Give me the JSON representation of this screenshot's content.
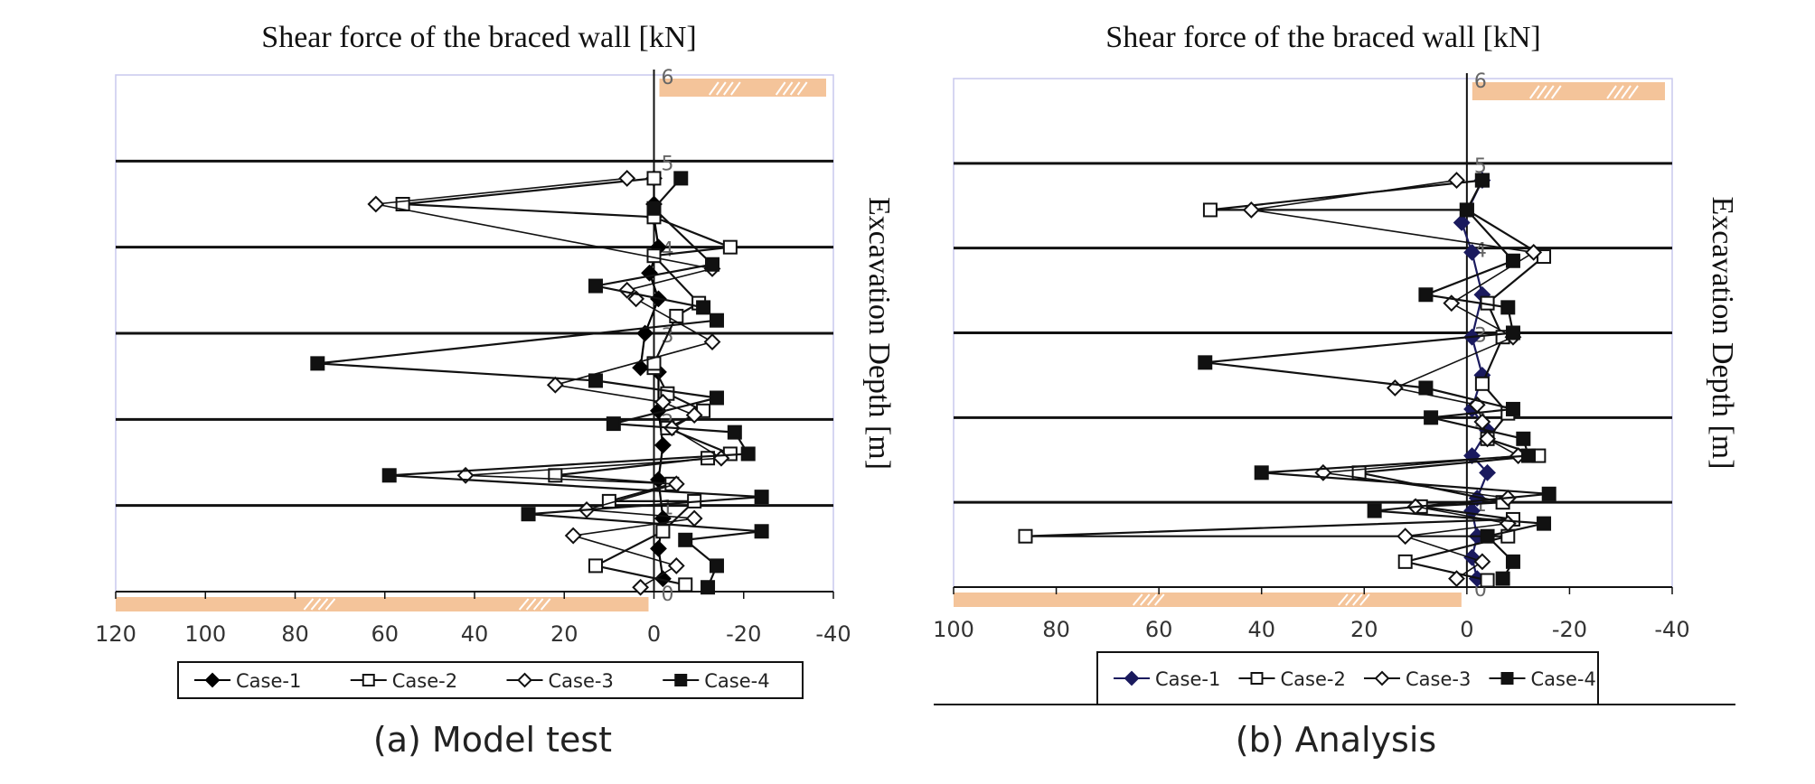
{
  "page": {
    "caption_a": "(a) Model test",
    "caption_b": "(b) Analysis"
  },
  "colors": {
    "soil_fill": "#f4c49a",
    "plot_border": "#c8c8ee",
    "analysis_case1": "#1a1a5e"
  },
  "chart_data": [
    {
      "type": "line",
      "orientation": "vertical-profile",
      "title": "Shear force of the braced wall [kN]",
      "xlabel": "",
      "ylabel": "Excavation Depth [m]",
      "xlim": [
        120,
        -40
      ],
      "ylim": [
        0,
        6
      ],
      "xticks": [
        120,
        100,
        80,
        60,
        40,
        20,
        0,
        -20,
        -40
      ],
      "yticks": [
        0,
        1,
        2,
        3,
        4,
        5,
        6
      ],
      "x_axis_reversed": true,
      "grid": "horizontal",
      "legend": "bottom",
      "series": [
        {
          "name": "Case-1",
          "marker": "filled-diamond",
          "points": [
            [
              -2,
              0.15
            ],
            [
              -1,
              0.5
            ],
            [
              -2,
              0.85
            ],
            [
              -1,
              1.3
            ],
            [
              -2,
              1.7
            ],
            [
              -1,
              2.1
            ],
            [
              -1,
              2.55
            ],
            [
              2,
              3.0
            ],
            [
              3,
              2.6
            ],
            [
              -1,
              3.4
            ],
            [
              1,
              3.7
            ],
            [
              -1,
              4.0
            ],
            [
              0,
              4.35
            ],
            [
              0,
              4.5
            ],
            [
              0,
              4.8
            ]
          ]
        },
        {
          "name": "Case-2",
          "marker": "open-square",
          "points": [
            [
              -7,
              0.08
            ],
            [
              13,
              0.3
            ],
            [
              -2,
              0.7
            ],
            [
              -9,
              1.05
            ],
            [
              10,
              1.05
            ],
            [
              -4,
              1.25
            ],
            [
              -12,
              1.55
            ],
            [
              22,
              1.35
            ],
            [
              -17,
              1.6
            ],
            [
              -3,
              1.9
            ],
            [
              -11,
              2.1
            ],
            [
              -3,
              2.3
            ],
            [
              0,
              2.6
            ],
            [
              0,
              2.65
            ],
            [
              -5,
              3.2
            ],
            [
              -10,
              3.35
            ],
            [
              0,
              3.9
            ],
            [
              -17,
              4.0
            ],
            [
              0,
              4.35
            ],
            [
              56,
              4.5
            ],
            [
              0,
              4.8
            ]
          ]
        },
        {
          "name": "Case-3",
          "marker": "open-diamond",
          "points": [
            [
              3,
              0.05
            ],
            [
              -5,
              0.3
            ],
            [
              18,
              0.65
            ],
            [
              -9,
              0.85
            ],
            [
              15,
              0.95
            ],
            [
              -5,
              1.25
            ],
            [
              42,
              1.35
            ],
            [
              -15,
              1.55
            ],
            [
              -4,
              1.9
            ],
            [
              -9,
              2.05
            ],
            [
              -2,
              2.2
            ],
            [
              22,
              2.4
            ],
            [
              -13,
              2.9
            ],
            [
              4,
              3.4
            ],
            [
              -13,
              3.75
            ],
            [
              6,
              3.5
            ],
            [
              62,
              4.5
            ],
            [
              6,
              4.8
            ]
          ]
        },
        {
          "name": "Case-4",
          "marker": "filled-square",
          "points": [
            [
              -12,
              0.05
            ],
            [
              -14,
              0.3
            ],
            [
              -7,
              0.6
            ],
            [
              -24,
              0.7
            ],
            [
              28,
              0.9
            ],
            [
              -24,
              1.1
            ],
            [
              59,
              1.35
            ],
            [
              -21,
              1.6
            ],
            [
              -18,
              1.85
            ],
            [
              9,
              1.95
            ],
            [
              -14,
              2.25
            ],
            [
              13,
              2.45
            ],
            [
              75,
              2.65
            ],
            [
              -14,
              3.15
            ],
            [
              -11,
              3.3
            ],
            [
              13,
              3.55
            ],
            [
              -13,
              3.8
            ],
            [
              0,
              4.45
            ],
            [
              -6,
              4.8
            ]
          ]
        }
      ]
    },
    {
      "type": "line",
      "orientation": "vertical-profile",
      "title": "Shear force of the braced wall [kN]",
      "xlabel": "",
      "ylabel": "Excavation Depth [m]",
      "xlim": [
        100,
        -40
      ],
      "ylim": [
        0,
        6
      ],
      "xticks": [
        100,
        80,
        60,
        40,
        20,
        0,
        -20,
        -40
      ],
      "yticks": [
        0,
        1,
        2,
        3,
        4,
        5,
        6
      ],
      "x_axis_reversed": true,
      "grid": "horizontal",
      "legend": "bottom",
      "series": [
        {
          "name": "Case-1",
          "marker": "filled-diamond",
          "points": [
            [
              -2,
              0.1
            ],
            [
              -1,
              0.35
            ],
            [
              -2,
              0.6
            ],
            [
              -1,
              0.9
            ],
            [
              -2,
              1.05
            ],
            [
              -4,
              1.35
            ],
            [
              -1,
              1.55
            ],
            [
              -4,
              1.85
            ],
            [
              -1,
              2.1
            ],
            [
              -3,
              2.5
            ],
            [
              -1,
              2.95
            ],
            [
              -3,
              3.45
            ],
            [
              -1,
              3.95
            ],
            [
              1,
              4.3
            ],
            [
              -3,
              4.8
            ]
          ]
        },
        {
          "name": "Case-2",
          "marker": "open-square",
          "points": [
            [
              -4,
              0.08
            ],
            [
              12,
              0.3
            ],
            [
              -8,
              0.6
            ],
            [
              86,
              0.6
            ],
            [
              -9,
              0.8
            ],
            [
              9,
              0.95
            ],
            [
              -7,
              1.0
            ],
            [
              21,
              1.35
            ],
            [
              -14,
              1.55
            ],
            [
              -4,
              1.75
            ],
            [
              -8,
              2.05
            ],
            [
              -3,
              2.4
            ],
            [
              -7,
              2.95
            ],
            [
              -4,
              3.35
            ],
            [
              -15,
              3.9
            ],
            [
              0,
              4.45
            ],
            [
              50,
              4.45
            ],
            [
              -3,
              4.8
            ]
          ]
        },
        {
          "name": "Case-3",
          "marker": "open-diamond",
          "points": [
            [
              2,
              0.1
            ],
            [
              -3,
              0.3
            ],
            [
              12,
              0.6
            ],
            [
              -8,
              0.75
            ],
            [
              10,
              0.95
            ],
            [
              -8,
              1.05
            ],
            [
              28,
              1.35
            ],
            [
              -10,
              1.55
            ],
            [
              -4,
              1.75
            ],
            [
              -3,
              1.95
            ],
            [
              -2,
              2.15
            ],
            [
              14,
              2.35
            ],
            [
              -9,
              2.95
            ],
            [
              3,
              3.35
            ],
            [
              -13,
              3.95
            ],
            [
              42,
              4.45
            ],
            [
              2,
              4.8
            ]
          ]
        },
        {
          "name": "Case-4",
          "marker": "filled-square",
          "points": [
            [
              -7,
              0.1
            ],
            [
              -9,
              0.3
            ],
            [
              -15,
              0.75
            ],
            [
              -4,
              0.6
            ],
            [
              18,
              0.9
            ],
            [
              -16,
              1.1
            ],
            [
              40,
              1.35
            ],
            [
              -12,
              1.55
            ],
            [
              -11,
              1.75
            ],
            [
              7,
              2.0
            ],
            [
              -9,
              2.1
            ],
            [
              8,
              2.35
            ],
            [
              51,
              2.65
            ],
            [
              -9,
              3.0
            ],
            [
              -8,
              3.3
            ],
            [
              8,
              3.45
            ],
            [
              -9,
              3.85
            ],
            [
              0,
              4.45
            ],
            [
              -3,
              4.8
            ]
          ]
        }
      ]
    }
  ]
}
